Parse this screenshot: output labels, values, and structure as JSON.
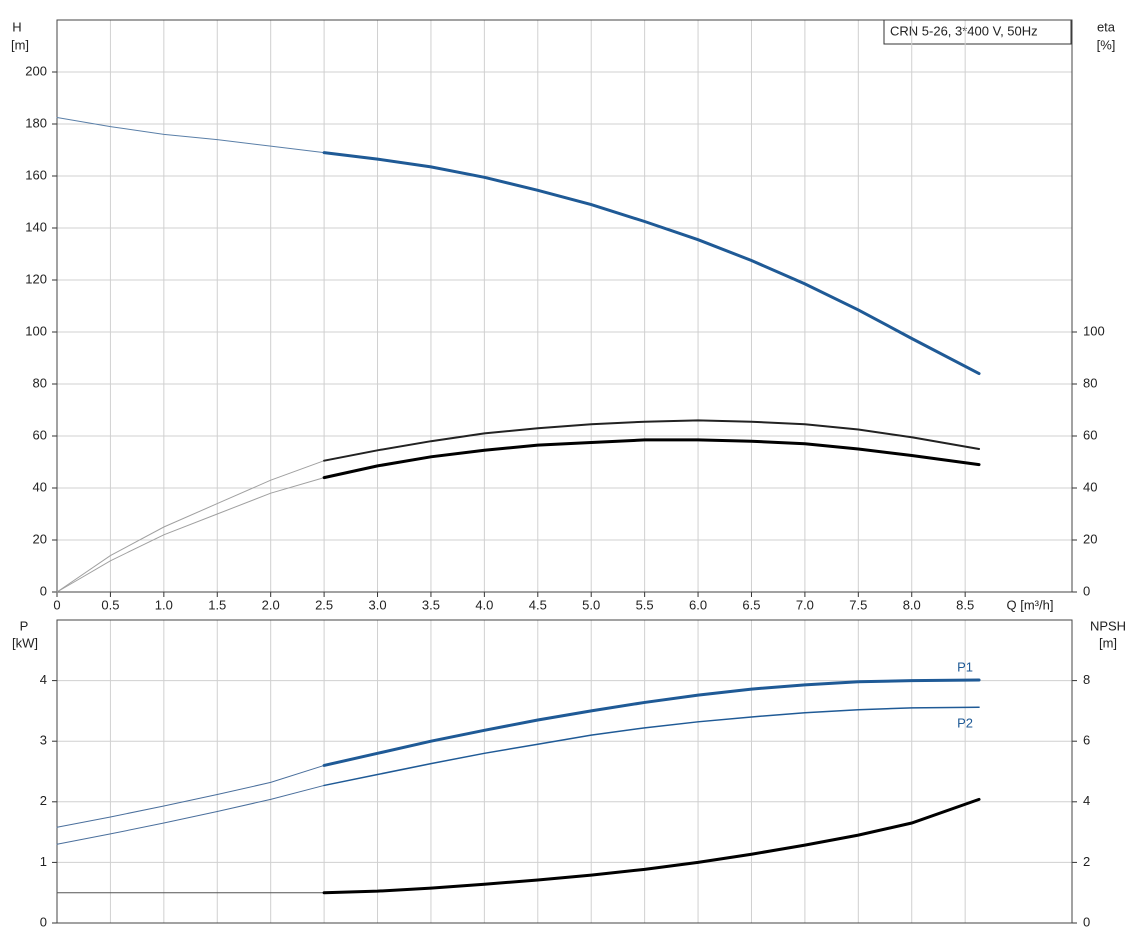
{
  "chart_data": [
    {
      "type": "line",
      "title": "CRN 5-26, 3*400 V, 50Hz",
      "ylabel": [
        "H",
        "[m]"
      ],
      "y2label": [
        "eta",
        "[%]"
      ],
      "xlabel": "Q [m³/h]",
      "x": [
        0,
        0.5,
        1,
        1.5,
        2,
        2.5,
        3,
        3.5,
        4,
        4.5,
        5,
        5.5,
        6,
        6.5,
        7,
        7.5,
        8,
        8.63
      ],
      "xlim": [
        0,
        9.5
      ],
      "xticks": [
        0,
        0.5,
        {
          "value": 1,
          "label": "1.0"
        },
        1.5,
        {
          "value": 2,
          "label": "2.0"
        },
        2.5,
        {
          "value": 3,
          "label": "3.0"
        },
        3.5,
        {
          "value": 4,
          "label": "4.0"
        },
        4.5,
        {
          "value": 5,
          "label": "5.0"
        },
        5.5,
        {
          "value": 6,
          "label": "6.0"
        },
        6.5,
        {
          "value": 7,
          "label": "7.0"
        },
        7.5,
        {
          "value": 8,
          "label": "8.0"
        },
        8.5
      ],
      "ylim": [
        0,
        220
      ],
      "yticks": [
        0,
        20,
        40,
        60,
        80,
        100,
        120,
        140,
        160,
        180,
        200
      ],
      "y2lim": [
        0,
        220
      ],
      "y2ticks": [
        0,
        20,
        40,
        60,
        80,
        100
      ],
      "grid": true,
      "series": [
        {
          "color": "#5a7fa8",
          "width": 1,
          "values": [
            182.5,
            179,
            176,
            174,
            171.5,
            169,
            null,
            null,
            null,
            null,
            null,
            null,
            null,
            null,
            null,
            null,
            null,
            null
          ]
        },
        {
          "color": "#1f5a96",
          "width": 3,
          "values": [
            null,
            null,
            null,
            null,
            null,
            169,
            166.5,
            163.5,
            159.5,
            154.5,
            149,
            142.5,
            135.5,
            127.5,
            118.5,
            108.5,
            97.5,
            84
          ]
        },
        {
          "color": "#a0a0a0",
          "width": 1,
          "axis": "y2",
          "values": [
            0,
            14,
            25,
            34,
            43,
            50.5,
            null,
            null,
            null,
            null,
            null,
            null,
            null,
            null,
            null,
            null,
            null,
            null
          ]
        },
        {
          "color": "#222222",
          "width": 2,
          "axis": "y2",
          "values": [
            null,
            null,
            null,
            null,
            null,
            50.5,
            54.5,
            58,
            61,
            63,
            64.5,
            65.5,
            66,
            65.5,
            64.5,
            62.5,
            59.5,
            55
          ]
        },
        {
          "color": "#a0a0a0",
          "width": 1,
          "axis": "y2",
          "values": [
            0,
            12,
            22,
            30,
            38,
            44,
            null,
            null,
            null,
            null,
            null,
            null,
            null,
            null,
            null,
            null,
            null,
            null
          ]
        },
        {
          "color": "#000000",
          "width": 3,
          "axis": "y2",
          "values": [
            null,
            null,
            null,
            null,
            null,
            44,
            48.5,
            52,
            54.5,
            56.5,
            57.5,
            58.5,
            58.5,
            58,
            57,
            55,
            52.5,
            49
          ]
        }
      ]
    },
    {
      "type": "line",
      "ylabel": [
        "P",
        "[kW]"
      ],
      "y2label": [
        "NPSH",
        "[m]"
      ],
      "x": [
        0,
        0.5,
        1,
        1.5,
        2,
        2.5,
        3,
        3.5,
        4,
        4.5,
        5,
        5.5,
        6,
        6.5,
        7,
        7.5,
        8,
        8.63
      ],
      "xlim": [
        0,
        9.5
      ],
      "ylim": [
        0,
        5
      ],
      "yticks": [
        0,
        1,
        2,
        3,
        4
      ],
      "y2lim": [
        0,
        10
      ],
      "y2ticks": [
        0,
        2,
        4,
        6,
        8
      ],
      "grid": true,
      "series": [
        {
          "color": "#4a6f9c",
          "width": 1,
          "values": [
            1.58,
            1.75,
            1.93,
            2.12,
            2.32,
            2.6,
            null,
            null,
            null,
            null,
            null,
            null,
            null,
            null,
            null,
            null,
            null,
            null
          ]
        },
        {
          "name": "P1",
          "color": "#1f5a96",
          "width": 3,
          "values": [
            null,
            null,
            null,
            null,
            null,
            2.6,
            2.8,
            3.0,
            3.18,
            3.35,
            3.5,
            3.64,
            3.76,
            3.86,
            3.93,
            3.98,
            4.0,
            4.01
          ]
        },
        {
          "color": "#4a6f9c",
          "width": 1,
          "values": [
            1.3,
            1.47,
            1.65,
            1.84,
            2.04,
            2.27,
            null,
            null,
            null,
            null,
            null,
            null,
            null,
            null,
            null,
            null,
            null,
            null
          ]
        },
        {
          "name": "P2",
          "color": "#1f5a96",
          "width": 1.5,
          "values": [
            null,
            null,
            null,
            null,
            null,
            2.27,
            2.45,
            2.63,
            2.8,
            2.95,
            3.1,
            3.22,
            3.32,
            3.4,
            3.47,
            3.52,
            3.55,
            3.56
          ]
        },
        {
          "color": "#555555",
          "width": 1,
          "axis": "y2",
          "values": [
            1.0,
            1.0,
            1.0,
            1.0,
            1.0,
            1.0,
            null,
            null,
            null,
            null,
            null,
            null,
            null,
            null,
            null,
            null,
            null,
            null
          ]
        },
        {
          "color": "#000000",
          "width": 3,
          "axis": "y2",
          "values": [
            null,
            null,
            null,
            null,
            null,
            1.0,
            1.05,
            1.15,
            1.28,
            1.42,
            1.58,
            1.77,
            2.0,
            2.27,
            2.57,
            2.9,
            3.3,
            4.08
          ]
        }
      ]
    }
  ]
}
